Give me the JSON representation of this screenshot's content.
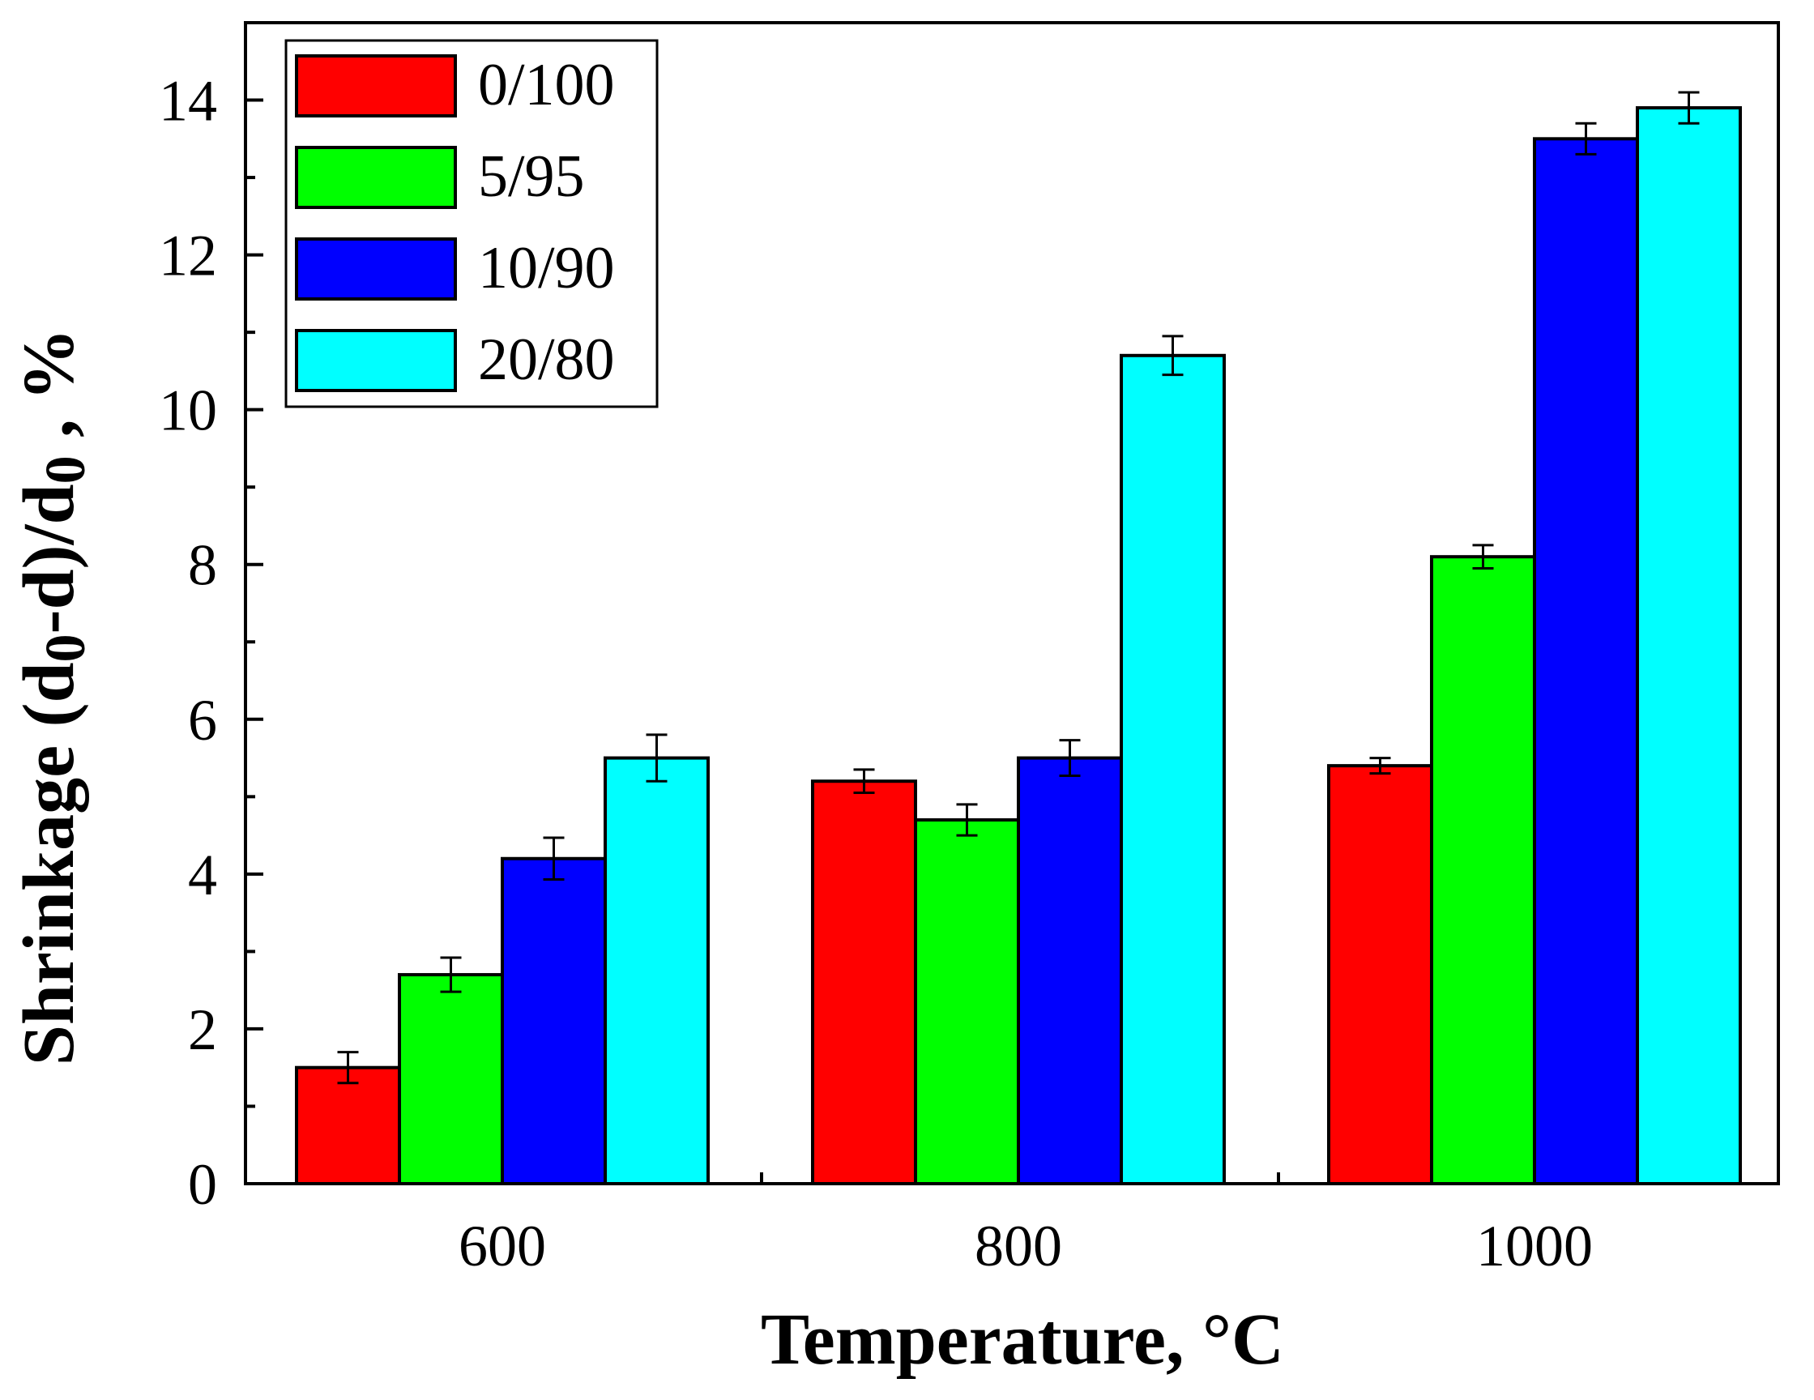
{
  "chart_data": {
    "type": "bar",
    "title": "",
    "xlabel": "Temperature, °C",
    "ylabel_parts": [
      "Shrinkage (d",
      "0",
      "-d)/d",
      "0",
      " , %"
    ],
    "categories": [
      "600",
      "800",
      "1000"
    ],
    "ylim": [
      0,
      15
    ],
    "yticks": [
      0,
      2,
      4,
      6,
      8,
      10,
      12,
      14
    ],
    "legend_position": "top-left",
    "grid": false,
    "series": [
      {
        "name": "0/100",
        "color": "#ff0000",
        "values": [
          1.5,
          5.2,
          5.4
        ],
        "errors": [
          0.2,
          0.15,
          0.1
        ]
      },
      {
        "name": "5/95",
        "color": "#00ff00",
        "values": [
          2.7,
          4.7,
          8.1
        ],
        "errors": [
          0.22,
          0.2,
          0.15
        ]
      },
      {
        "name": "10/90",
        "color": "#0000ff",
        "values": [
          4.2,
          5.5,
          13.5
        ],
        "errors": [
          0.27,
          0.23,
          0.2
        ]
      },
      {
        "name": "20/80",
        "color": "#00ffff",
        "values": [
          5.5,
          10.7,
          13.9
        ],
        "errors": [
          0.3,
          0.25,
          0.2
        ]
      }
    ]
  }
}
